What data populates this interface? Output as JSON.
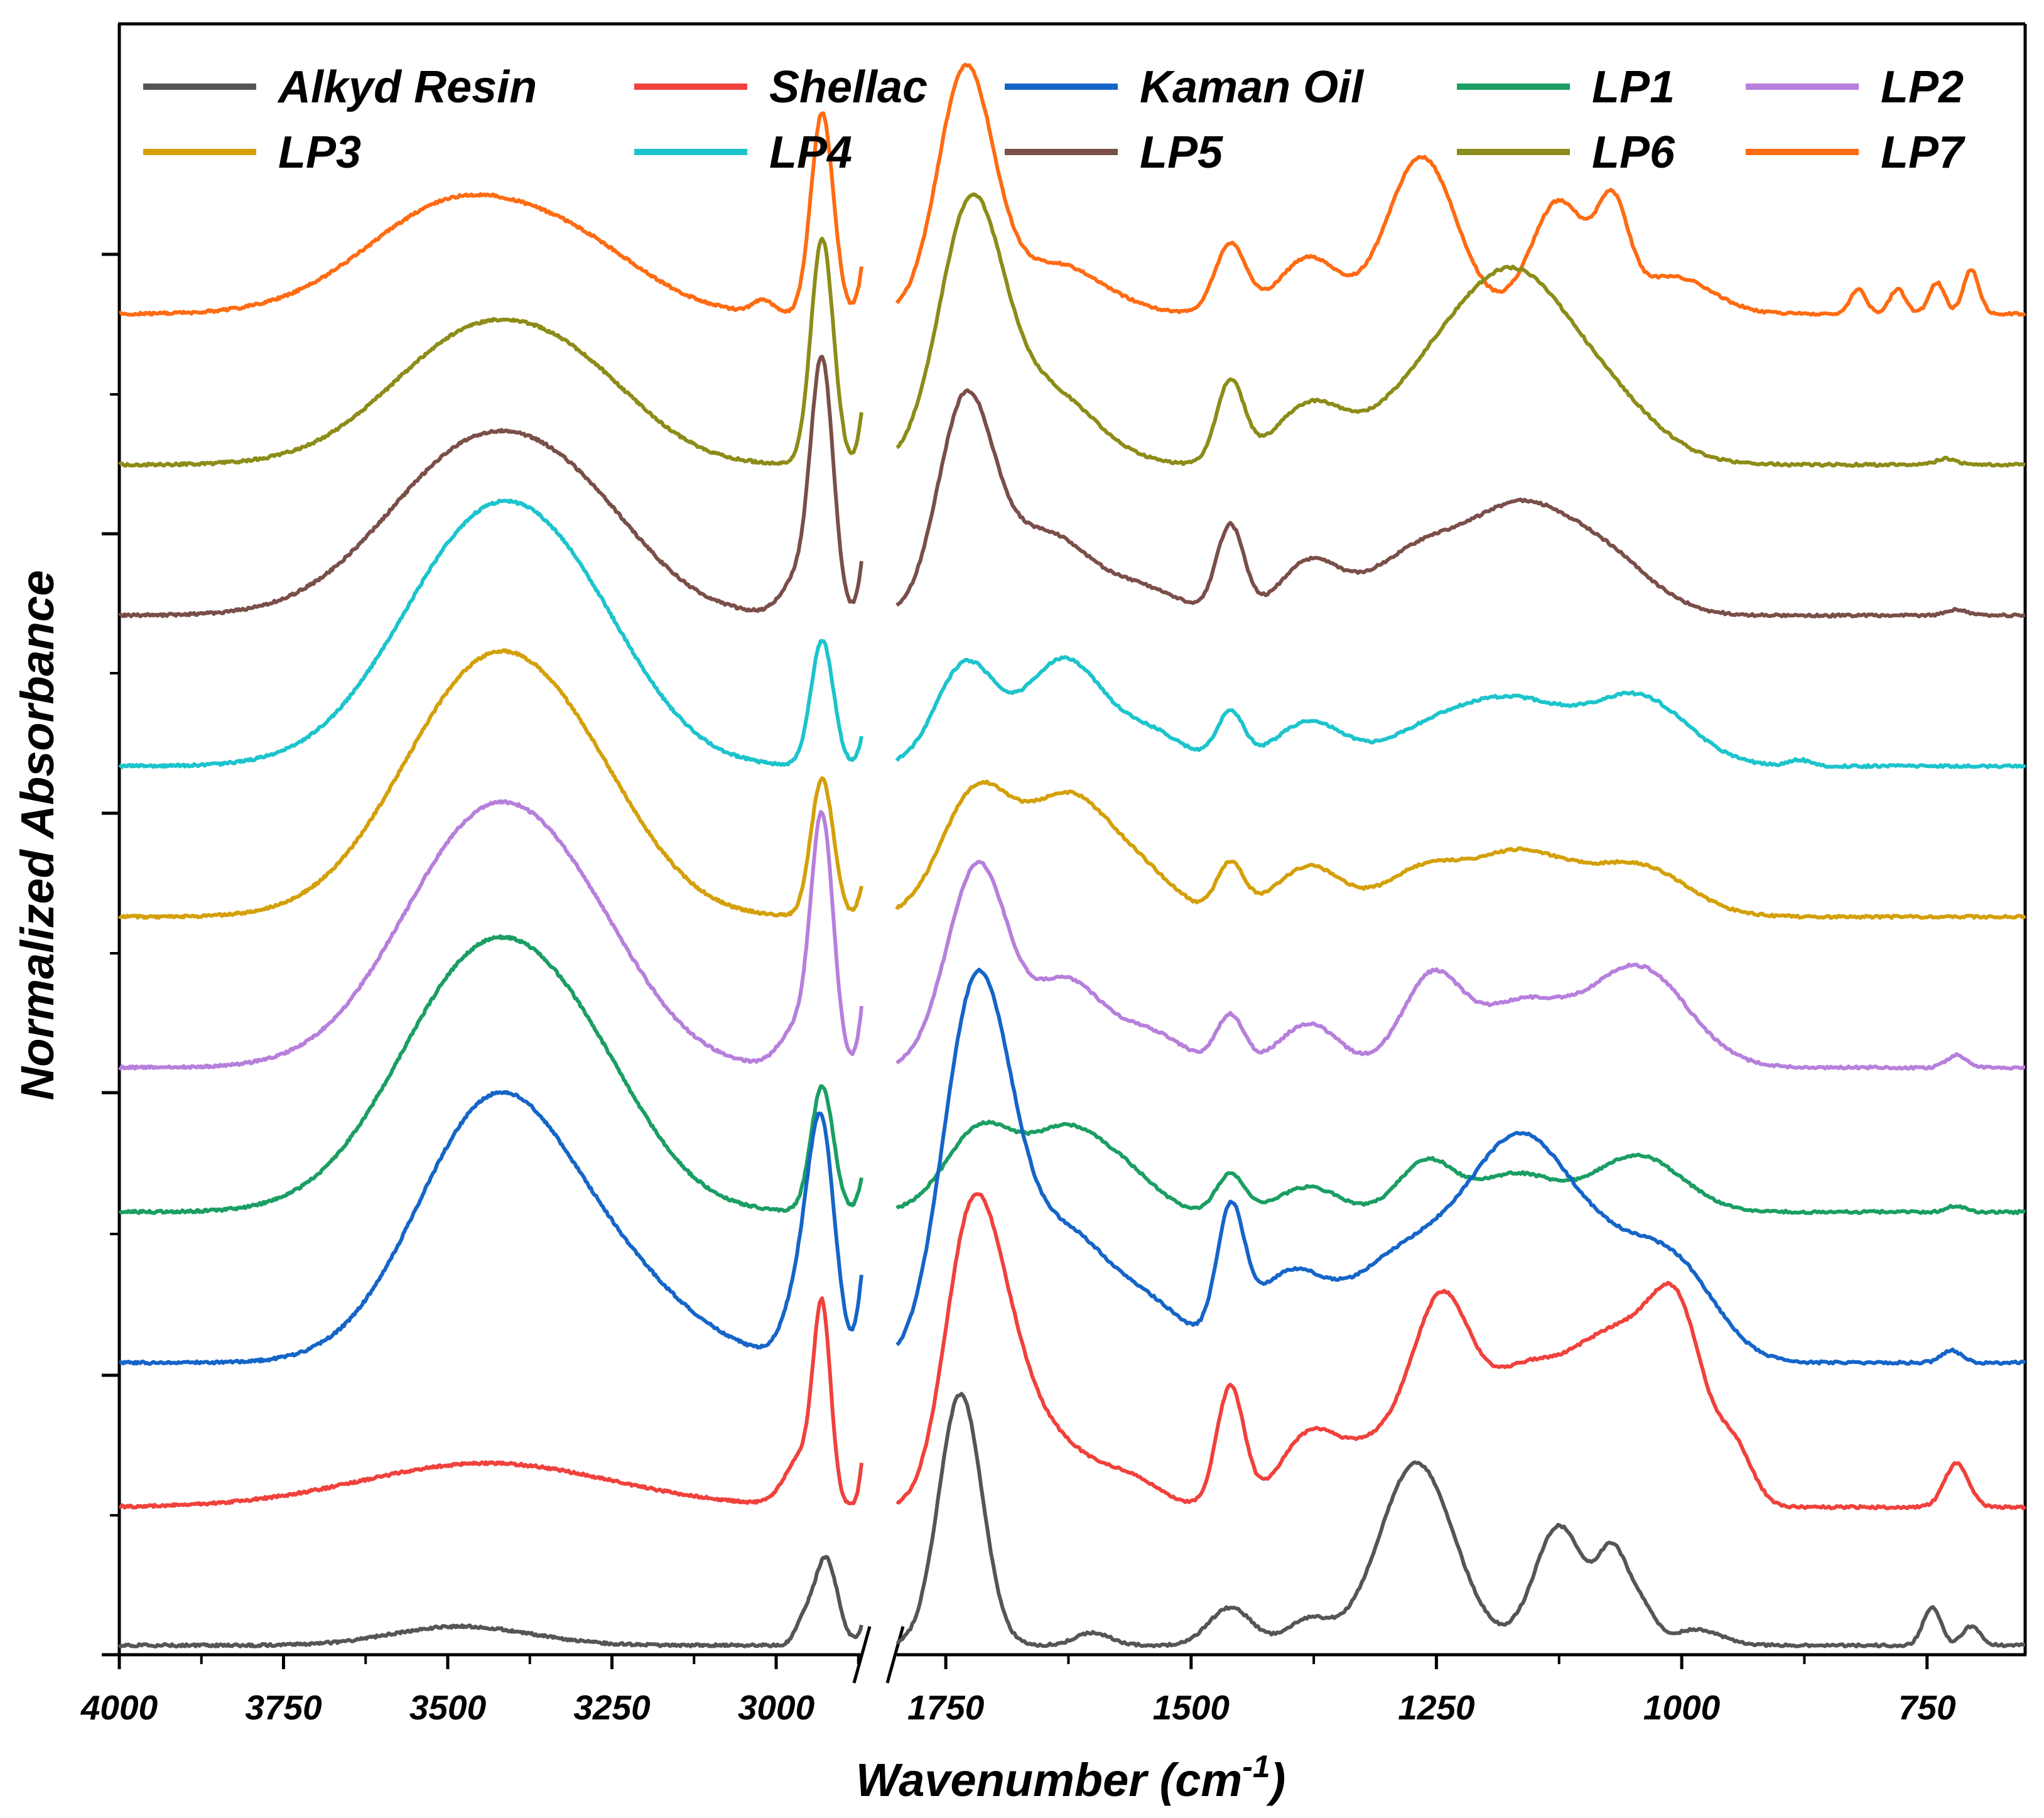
{
  "chart_data": {
    "type": "line",
    "title": "",
    "xlabel": "Wavenumber (cm",
    "xlabel_sup": "-1",
    "xlabel_close": ")",
    "ylabel": "Normalized Absorbance",
    "x_axis": {
      "reversed": true,
      "broken": true,
      "segments": [
        [
          4000,
          2870
        ],
        [
          1800,
          650
        ]
      ],
      "tick_labels": [
        "4000",
        "3750",
        "3500",
        "3250",
        "3000",
        "1750",
        "1500",
        "1250",
        "1000",
        "750"
      ],
      "tick_values": [
        4000,
        3750,
        3500,
        3250,
        3000,
        1750,
        1500,
        1250,
        1000,
        750
      ]
    },
    "y_axis": {
      "tick_labels_shown": false,
      "offset_stack": true
    },
    "legend": {
      "position": "top",
      "columns": 5,
      "entries": [
        "Alkyd Resin",
        "Shellac",
        "Kaman Oil",
        "LP1",
        "LP2",
        "LP3",
        "LP4",
        "LP5",
        "LP6",
        "LP7"
      ]
    },
    "series": [
      {
        "name": "Alkyd Resin",
        "color": "#555555",
        "baseline": 0.0,
        "peaks": [
          [
            3520,
            0.02,
            90
          ],
          [
            3420,
            0.015,
            90
          ],
          [
            2960,
            0.03,
            12
          ],
          [
            2925,
            0.14,
            18
          ],
          [
            2855,
            0.065,
            12
          ],
          [
            1735,
            0.4,
            22
          ],
          [
            1600,
            0.02,
            18
          ],
          [
            1460,
            0.06,
            22
          ],
          [
            1380,
            0.04,
            22
          ],
          [
            1270,
            0.29,
            38
          ],
          [
            1125,
            0.19,
            25
          ],
          [
            1070,
            0.14,
            16
          ],
          [
            1040,
            0.05,
            14
          ],
          [
            985,
            0.025,
            25
          ],
          [
            745,
            0.06,
            9
          ],
          [
            705,
            0.03,
            9
          ]
        ]
      },
      {
        "name": "Shellac",
        "color": "#f0413c",
        "baseline": 0.22,
        "peaks": [
          [
            3440,
            0.07,
            190
          ],
          [
            2930,
            0.29,
            13
          ],
          [
            2855,
            0.22,
            10
          ],
          [
            2960,
            0.08,
            25
          ],
          [
            1730,
            0.3,
            25
          ],
          [
            1700,
            0.26,
            30
          ],
          [
            1640,
            0.1,
            40
          ],
          [
            1560,
            0.04,
            30
          ],
          [
            1460,
            0.19,
            14
          ],
          [
            1380,
            0.11,
            30
          ],
          [
            1310,
            0.09,
            35
          ],
          [
            1245,
            0.3,
            30
          ],
          [
            1165,
            0.2,
            40
          ],
          [
            1095,
            0.15,
            35
          ],
          [
            1035,
            0.23,
            40
          ],
          [
            1000,
            0.17,
            25
          ],
          [
            945,
            0.08,
            18
          ],
          [
            720,
            0.07,
            12
          ]
        ]
      },
      {
        "name": "Kaman Oil",
        "color": "#1565c8",
        "baseline": 0.45,
        "peaks": [
          [
            3435,
            0.39,
            115
          ],
          [
            3250,
            0.12,
            120
          ],
          [
            2930,
            0.33,
            20
          ],
          [
            2855,
            0.24,
            14
          ],
          [
            2960,
            0.12,
            25
          ],
          [
            1730,
            0.39,
            30
          ],
          [
            1700,
            0.28,
            30
          ],
          [
            1630,
            0.2,
            45
          ],
          [
            1540,
            0.08,
            40
          ],
          [
            1460,
            0.2,
            14
          ],
          [
            1400,
            0.14,
            40
          ],
          [
            1310,
            0.09,
            40
          ],
          [
            1240,
            0.16,
            50
          ],
          [
            1165,
            0.24,
            45
          ],
          [
            1085,
            0.18,
            60
          ],
          [
            1000,
            0.1,
            40
          ],
          [
            725,
            0.02,
            10
          ]
        ]
      },
      {
        "name": "LP1",
        "color": "#1a9e63",
        "baseline": 0.69,
        "peaks": [
          [
            3445,
            0.4,
            130
          ],
          [
            3280,
            0.12,
            100
          ],
          [
            2930,
            0.2,
            17
          ],
          [
            2855,
            0.12,
            12
          ],
          [
            1715,
            0.13,
            35
          ],
          [
            1625,
            0.13,
            40
          ],
          [
            1560,
            0.04,
            30
          ],
          [
            1460,
            0.06,
            14
          ],
          [
            1380,
            0.04,
            30
          ],
          [
            1260,
            0.08,
            28
          ],
          [
            1170,
            0.06,
            40
          ],
          [
            1045,
            0.09,
            45
          ],
          [
            720,
            0.01,
            10
          ]
        ]
      },
      {
        "name": "LP2",
        "color": "#b77fdc",
        "baseline": 0.92,
        "peaks": [
          [
            3440,
            0.39,
            130
          ],
          [
            3280,
            0.1,
            100
          ],
          [
            2930,
            0.39,
            17
          ],
          [
            2855,
            0.21,
            12
          ],
          [
            2970,
            0.06,
            25
          ],
          [
            1730,
            0.2,
            28
          ],
          [
            1705,
            0.15,
            25
          ],
          [
            1630,
            0.14,
            40
          ],
          [
            1540,
            0.05,
            35
          ],
          [
            1460,
            0.08,
            14
          ],
          [
            1380,
            0.07,
            30
          ],
          [
            1255,
            0.14,
            30
          ],
          [
            1165,
            0.1,
            45
          ],
          [
            1045,
            0.16,
            50
          ],
          [
            720,
            0.02,
            10
          ]
        ]
      },
      {
        "name": "LP3",
        "color": "#d4a00a",
        "baseline": 1.16,
        "peaks": [
          [
            3440,
            0.39,
            130
          ],
          [
            3280,
            0.1,
            100
          ],
          [
            2930,
            0.22,
            17
          ],
          [
            2855,
            0.11,
            12
          ],
          [
            1720,
            0.19,
            35
          ],
          [
            1625,
            0.19,
            45
          ],
          [
            1545,
            0.05,
            35
          ],
          [
            1460,
            0.08,
            14
          ],
          [
            1380,
            0.08,
            35
          ],
          [
            1265,
            0.07,
            40
          ],
          [
            1165,
            0.1,
            50
          ],
          [
            1045,
            0.08,
            50
          ]
        ]
      },
      {
        "name": "LP4",
        "color": "#1cc4cc",
        "baseline": 1.4,
        "peaks": [
          [
            3435,
            0.39,
            135
          ],
          [
            3280,
            0.09,
            100
          ],
          [
            2930,
            0.2,
            17
          ],
          [
            2855,
            0.1,
            12
          ],
          [
            1730,
            0.16,
            30
          ],
          [
            1630,
            0.17,
            40
          ],
          [
            1540,
            0.05,
            35
          ],
          [
            1460,
            0.08,
            14
          ],
          [
            1380,
            0.07,
            35
          ],
          [
            1250,
            0.06,
            50
          ],
          [
            1165,
            0.09,
            50
          ],
          [
            1045,
            0.11,
            50
          ],
          [
            880,
            0.01,
            10
          ]
        ]
      },
      {
        "name": "LP5",
        "color": "#7a4e49",
        "baseline": 1.64,
        "peaks": [
          [
            3450,
            0.27,
            140
          ],
          [
            3280,
            0.08,
            100
          ],
          [
            2930,
            0.39,
            17
          ],
          [
            2855,
            0.19,
            12
          ],
          [
            2965,
            0.06,
            25
          ],
          [
            1730,
            0.33,
            28
          ],
          [
            1650,
            0.13,
            45
          ],
          [
            1550,
            0.04,
            40
          ],
          [
            1460,
            0.14,
            14
          ],
          [
            1380,
            0.08,
            30
          ],
          [
            1260,
            0.11,
            55
          ],
          [
            1165,
            0.13,
            45
          ],
          [
            1085,
            0.1,
            50
          ],
          [
            720,
            0.01,
            10
          ]
        ]
      },
      {
        "name": "LP6",
        "color": "#8c8c18",
        "baseline": 1.88,
        "peaks": [
          [
            3450,
            0.21,
            135
          ],
          [
            3280,
            0.07,
            100
          ],
          [
            2930,
            0.36,
            17
          ],
          [
            2855,
            0.18,
            12
          ],
          [
            1725,
            0.39,
            32
          ],
          [
            1650,
            0.12,
            50
          ],
          [
            1460,
            0.13,
            14
          ],
          [
            1380,
            0.09,
            35
          ],
          [
            1240,
            0.16,
            60
          ],
          [
            1165,
            0.2,
            50
          ],
          [
            1085,
            0.11,
            55
          ],
          [
            730,
            0.01,
            10
          ]
        ]
      },
      {
        "name": "LP7",
        "color": "#ff6b12",
        "baseline": 2.12,
        "peaks": [
          [
            3480,
            0.18,
            140
          ],
          [
            3280,
            0.06,
            100
          ],
          [
            2930,
            0.32,
            17
          ],
          [
            2855,
            0.16,
            12
          ],
          [
            3020,
            0.02,
            15
          ],
          [
            1730,
            0.38,
            28
          ],
          [
            1640,
            0.08,
            50
          ],
          [
            1460,
            0.11,
            16
          ],
          [
            1380,
            0.09,
            30
          ],
          [
            1265,
            0.25,
            35
          ],
          [
            1125,
            0.18,
            28
          ],
          [
            1070,
            0.15,
            16
          ],
          [
            1010,
            0.06,
            40
          ],
          [
            820,
            0.04,
            8
          ],
          [
            780,
            0.04,
            8
          ],
          [
            740,
            0.05,
            8
          ],
          [
            705,
            0.07,
            8
          ]
        ]
      }
    ]
  }
}
